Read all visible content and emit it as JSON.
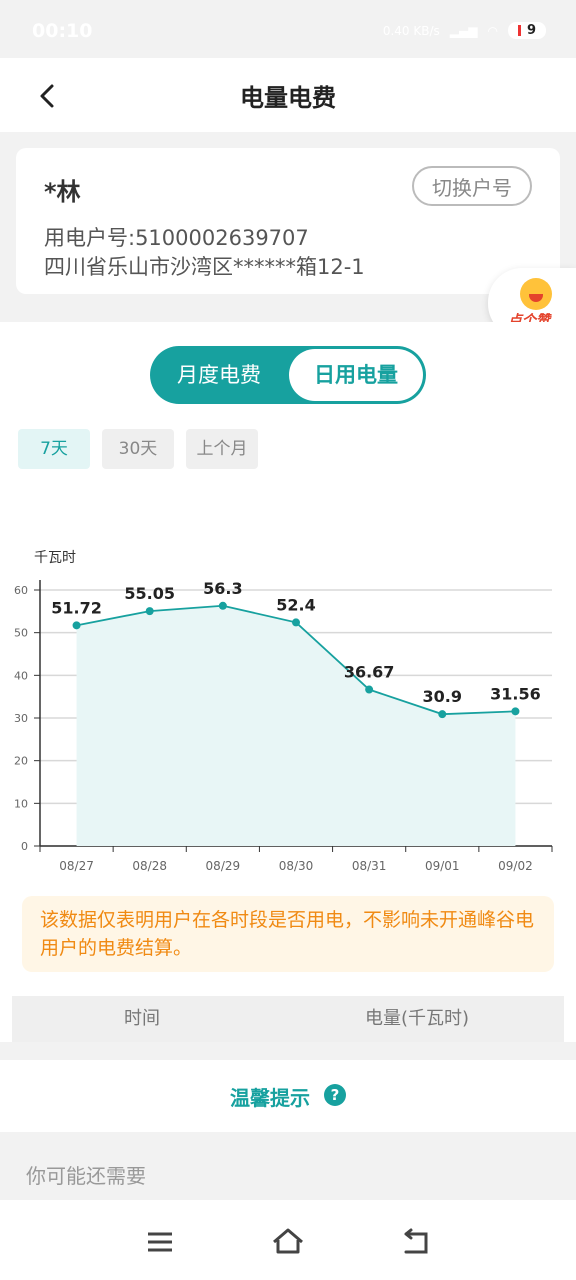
{
  "status_bar": {
    "time": "00:10",
    "net_speed": "0.40 KB/s",
    "battery": "9"
  },
  "header": {
    "title": "电量电费",
    "back_icon": "chevron-left-icon"
  },
  "account": {
    "name": "*林",
    "switch_label": "切换户号",
    "account_no": "用电户号:5100002639707",
    "address": "四川省乐山市沙湾区******箱12-1"
  },
  "float_like": {
    "label": "点个赞",
    "icon": "smile-face-icon"
  },
  "tabs": {
    "monthly": "月度电费",
    "daily": "日用电量"
  },
  "periods": [
    "7天",
    "30天",
    "上个月"
  ],
  "chart_data": {
    "type": "area",
    "ylabel": "千瓦时",
    "categories": [
      "08/27",
      "08/28",
      "08/29",
      "08/30",
      "08/31",
      "09/01",
      "09/02"
    ],
    "values": [
      51.72,
      55.05,
      56.3,
      52.4,
      36.67,
      30.9,
      31.56
    ],
    "value_labels": [
      "51.72",
      "55.05",
      "56.3",
      "52.4",
      "36.67",
      "30.9",
      "31.56"
    ],
    "ylim": [
      0,
      60
    ],
    "yticks": [
      0,
      10,
      20,
      30,
      40,
      50,
      60
    ],
    "grid": true,
    "color": "#17a19f",
    "fill": "#e8f6f6"
  },
  "notice": "该数据仅表明用户在各时段是否用电，不影响未开通峰谷电用户的电费结算。",
  "table": {
    "col_time": "时间",
    "col_usage": "电量(千瓦时)"
  },
  "tips": {
    "label": "温馨提示",
    "icon": "question-icon"
  },
  "may_need": "你可能还需要",
  "nav": {
    "menu_icon": "menu-icon",
    "home_icon": "home-icon",
    "back_icon": "back-icon"
  }
}
